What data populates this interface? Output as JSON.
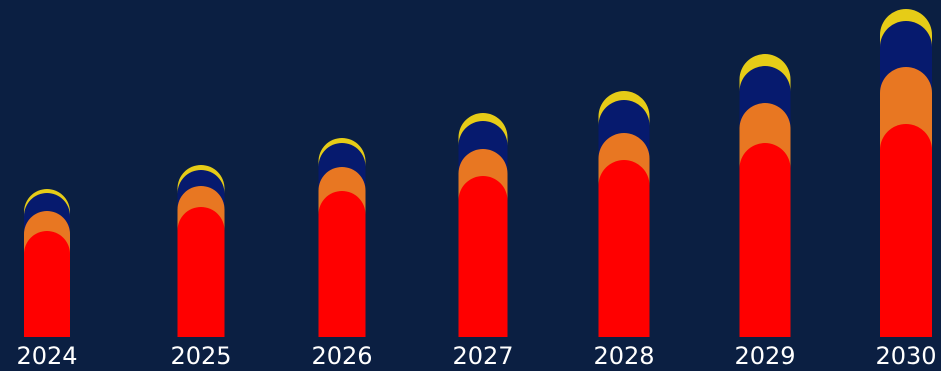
{
  "chart_data": {
    "type": "bar",
    "stacked": true,
    "categories": [
      "2024",
      "2025",
      "2026",
      "2027",
      "2028",
      "2029",
      "2030"
    ],
    "series": [
      {
        "values": [
          106,
          130,
          146,
          161,
          177,
          194,
          213
        ],
        "color": "#ff0000"
      },
      {
        "values": [
          20,
          21,
          24,
          27,
          27,
          40,
          57
        ],
        "color": "#e87722"
      },
      {
        "values": [
          18,
          16,
          24,
          28,
          33,
          37,
          46
        ],
        "color": "#061a6e"
      },
      {
        "values": [
          4,
          5,
          5,
          8,
          9,
          12,
          12
        ],
        "color": "#e6cc17"
      }
    ],
    "ylim": [
      0,
      330
    ],
    "grid": false,
    "legend": "none",
    "background": "#0b1f42",
    "tick_label_color": "#ffffff"
  }
}
